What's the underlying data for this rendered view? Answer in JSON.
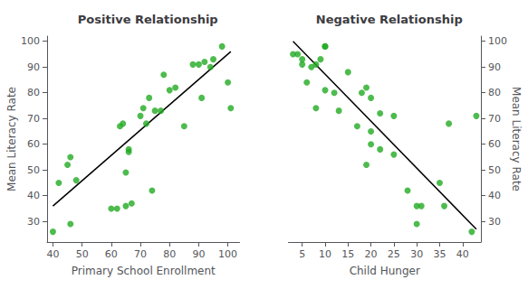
{
  "chart_data": [
    {
      "type": "scatter",
      "title": "Positive Relationship",
      "x_label": "Primary School Enrollment",
      "y_label": "Mean Literacy Rate",
      "series": [
        {
          "type": "scatter",
          "color": "#22aa22",
          "x": [
            40,
            42,
            45,
            46,
            46,
            48,
            60,
            62,
            63,
            64,
            65,
            65,
            66,
            66,
            67,
            70,
            71,
            72,
            73,
            74,
            75,
            77,
            78,
            80,
            82,
            85,
            88,
            90,
            91,
            92,
            94,
            95,
            98,
            100,
            101
          ],
          "values": [
            26,
            45,
            52,
            55,
            29,
            46,
            35,
            35,
            67,
            68,
            36,
            49,
            57,
            58,
            37,
            71,
            74,
            68,
            78,
            42,
            73,
            73,
            87,
            81,
            82,
            67,
            91,
            91,
            78,
            92,
            90,
            93,
            98,
            84,
            74
          ]
        },
        {
          "type": "line",
          "color": "#000000",
          "x": [
            40,
            101
          ],
          "values": [
            36,
            96
          ]
        }
      ],
      "xlim": [
        38,
        104
      ],
      "ylim": [
        22,
        102
      ],
      "xticks": [
        40,
        50,
        60,
        70,
        80,
        90,
        100
      ],
      "yticks": [
        30,
        40,
        50,
        60,
        70,
        80,
        90,
        100
      ],
      "grid": false
    },
    {
      "type": "scatter",
      "title": "Negative Relationship",
      "x_label": "Child Hunger",
      "y_label": "Mean Literacy Rate",
      "series": [
        {
          "type": "scatter",
          "color": "#22aa22",
          "x": [
            3,
            4,
            5,
            5,
            6,
            7,
            8,
            8,
            9,
            10,
            10,
            10,
            12,
            13,
            15,
            17,
            18,
            19,
            19,
            20,
            20,
            20,
            22,
            22,
            25,
            25,
            28,
            30,
            30,
            31,
            35,
            36,
            37,
            42,
            43
          ],
          "values": [
            95,
            95,
            91,
            93,
            84,
            90,
            91,
            74,
            93,
            81,
            98,
            98,
            80,
            73,
            88,
            67,
            80,
            82,
            52,
            78,
            60,
            65,
            72,
            58,
            56,
            71,
            42,
            29,
            36,
            36,
            45,
            36,
            68,
            26,
            71
          ]
        },
        {
          "type": "line",
          "color": "#000000",
          "x": [
            3,
            43
          ],
          "values": [
            100,
            27
          ]
        }
      ],
      "xlim": [
        2,
        44
      ],
      "ylim": [
        22,
        102
      ],
      "xticks": [
        5,
        10,
        15,
        20,
        25,
        30,
        35,
        40
      ],
      "yticks": [
        30,
        40,
        50,
        60,
        70,
        80,
        90,
        100
      ],
      "grid": false
    }
  ]
}
